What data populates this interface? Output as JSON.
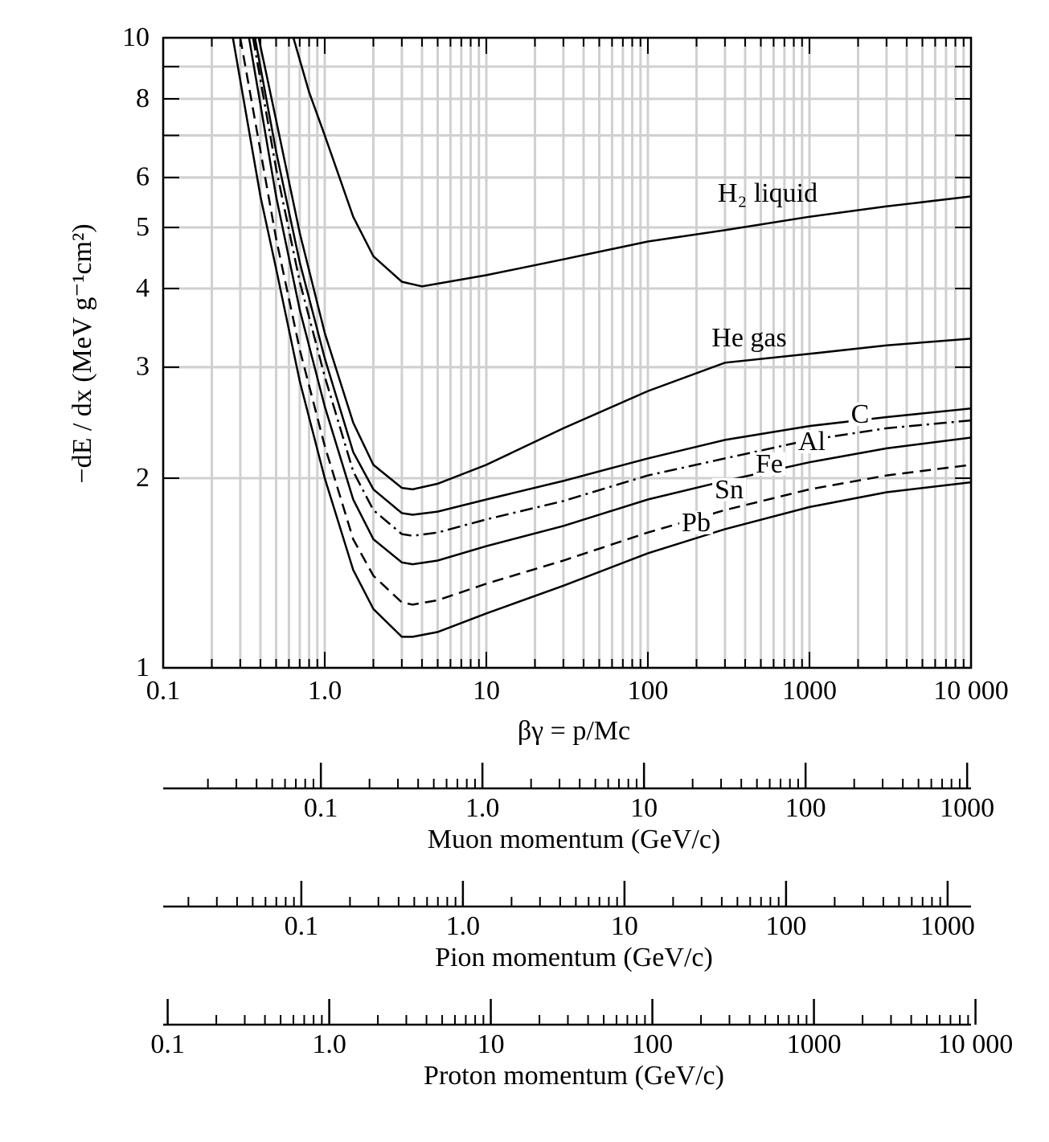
{
  "chart_data": [
    {
      "type": "line",
      "log_x": true,
      "log_y": true,
      "grid": true,
      "minor_grid": true,
      "x_label": "βγ = p/Mc",
      "y_label": "−dE / dx (MeV g⁻¹cm²)",
      "xlim": [
        0.1,
        10000
      ],
      "ylim": [
        1,
        10
      ],
      "xticks": [
        0.1,
        {
          "value": 1,
          "label": "1.0"
        },
        10,
        100,
        1000,
        {
          "value": 10000,
          "label": "10 000"
        }
      ],
      "yticks": [
        1,
        2,
        3,
        4,
        5,
        6,
        8,
        10
      ],
      "series": [
        {
          "name": "H₂ liquid",
          "color": "#000000",
          "dash": "solid",
          "x": [
            0.64,
            0.8,
            1,
            1.5,
            2,
            3,
            4,
            10,
            30,
            100,
            300,
            1000,
            3000,
            10000
          ],
          "values": [
            10,
            8.2,
            7.0,
            5.2,
            4.5,
            4.1,
            4.03,
            4.2,
            4.45,
            4.75,
            4.95,
            5.2,
            5.4,
            5.6
          ]
        },
        {
          "name": "He gas",
          "color": "#000000",
          "dash": "solid",
          "x": [
            0.39,
            0.5,
            0.7,
            1,
            1.5,
            2,
            3,
            3.5,
            5,
            10,
            30,
            100,
            300,
            1000,
            3000,
            10000
          ],
          "values": [
            10,
            7.4,
            4.9,
            3.4,
            2.45,
            2.1,
            1.93,
            1.92,
            1.96,
            2.1,
            2.4,
            2.75,
            3.05,
            3.15,
            3.25,
            3.33
          ]
        },
        {
          "name": "C",
          "color": "#000000",
          "dash": "solid",
          "x": [
            0.37,
            0.5,
            0.7,
            1,
            1.5,
            2,
            3,
            3.5,
            5,
            10,
            30,
            100,
            300,
            1000,
            3000,
            10000
          ],
          "values": [
            10,
            6.6,
            4.4,
            3.1,
            2.2,
            1.92,
            1.76,
            1.75,
            1.77,
            1.85,
            1.98,
            2.15,
            2.3,
            2.42,
            2.5,
            2.58
          ]
        },
        {
          "name": "Al",
          "color": "#000000",
          "dash": "dash-dot",
          "x": [
            0.36,
            0.5,
            0.7,
            1,
            1.5,
            2,
            3,
            3.5,
            5,
            10,
            30,
            100,
            300,
            1000,
            3000,
            10000
          ],
          "values": [
            10,
            6.2,
            4.1,
            2.9,
            2.05,
            1.78,
            1.63,
            1.62,
            1.64,
            1.72,
            1.84,
            2.02,
            2.15,
            2.3,
            2.4,
            2.47
          ]
        },
        {
          "name": "Fe",
          "color": "#000000",
          "dash": "solid",
          "x": [
            0.34,
            0.5,
            0.7,
            1,
            1.5,
            2,
            3,
            3.5,
            5,
            10,
            30,
            100,
            300,
            1000,
            3000,
            10000
          ],
          "values": [
            10,
            5.6,
            3.7,
            2.6,
            1.85,
            1.6,
            1.47,
            1.46,
            1.48,
            1.56,
            1.68,
            1.85,
            1.98,
            2.12,
            2.23,
            2.32
          ]
        },
        {
          "name": "Sn",
          "color": "#000000",
          "dash": "dashed",
          "x": [
            0.3,
            0.5,
            0.7,
            1,
            1.5,
            2,
            3,
            3.5,
            5,
            10,
            30,
            100,
            300,
            1000,
            3000,
            10000
          ],
          "values": [
            10,
            4.8,
            3.2,
            2.25,
            1.6,
            1.4,
            1.27,
            1.26,
            1.28,
            1.36,
            1.48,
            1.64,
            1.78,
            1.92,
            2.02,
            2.1
          ]
        },
        {
          "name": "Pb",
          "color": "#000000",
          "dash": "solid",
          "x": [
            0.27,
            0.4,
            0.5,
            0.7,
            1,
            1.5,
            2,
            3,
            3.5,
            5,
            10,
            30,
            100,
            300,
            1000,
            3000,
            10000
          ],
          "values": [
            10,
            5.6,
            4.3,
            2.85,
            2.0,
            1.43,
            1.24,
            1.12,
            1.12,
            1.14,
            1.22,
            1.35,
            1.52,
            1.66,
            1.8,
            1.9,
            1.97
          ]
        }
      ]
    },
    {
      "type": "axis",
      "log_x": true,
      "x_label": "Muon momentum (GeV/c)",
      "xlim": [
        0.01057,
        1057
      ],
      "xticks": [
        0.1,
        {
          "value": 1,
          "label": "1.0"
        },
        10,
        100,
        1000
      ]
    },
    {
      "type": "axis",
      "log_x": true,
      "x_label": "Pion momentum (GeV/c)",
      "xlim": [
        0.01396,
        1396
      ],
      "xticks": [
        0.1,
        {
          "value": 1,
          "label": "1.0"
        },
        10,
        100,
        1000
      ]
    },
    {
      "type": "axis",
      "log_x": true,
      "x_label": "Proton momentum (GeV/c)",
      "xlim": [
        0.0938,
        9383
      ],
      "xticks": [
        0.1,
        {
          "value": 1,
          "label": "1.0"
        },
        10,
        100,
        1000,
        {
          "value": 10000,
          "label": "10 000"
        }
      ]
    }
  ]
}
